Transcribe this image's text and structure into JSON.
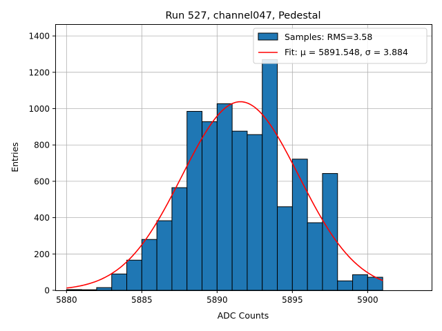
{
  "chart_data": {
    "type": "bar",
    "title": "Run 527, channel047, Pedestal",
    "xlabel": "ADC Counts",
    "ylabel": "Entries",
    "xlim": [
      5879.25,
      5904.25
    ],
    "ylim": [
      0,
      1465
    ],
    "xticks": [
      5880,
      5885,
      5890,
      5895,
      5900
    ],
    "yticks": [
      0,
      200,
      400,
      600,
      800,
      1000,
      1200,
      1400
    ],
    "grid": true,
    "legend_position": "top-right",
    "bins": {
      "edges": [
        5880,
        5881,
        5882,
        5883,
        5884,
        5885,
        5886,
        5887,
        5888,
        5889,
        5890,
        5891,
        5892,
        5893,
        5894,
        5895,
        5896,
        5897,
        5898,
        5899,
        5900,
        5901
      ],
      "counts": [
        4,
        3,
        15,
        90,
        166,
        280,
        383,
        565,
        985,
        928,
        1027,
        876,
        857,
        1270,
        460,
        722,
        372,
        643,
        52,
        86,
        72
      ]
    },
    "series": [
      {
        "name": "Samples: RMS=3.58",
        "type": "histogram",
        "color": "#1f77b4"
      },
      {
        "name": "Fit: μ = 5891.548, σ = 3.884",
        "type": "line",
        "color": "#ff0000",
        "mu": 5891.548,
        "sigma": 3.884,
        "amplitude": 1038,
        "x_range": [
          5880,
          5901
        ]
      }
    ]
  }
}
